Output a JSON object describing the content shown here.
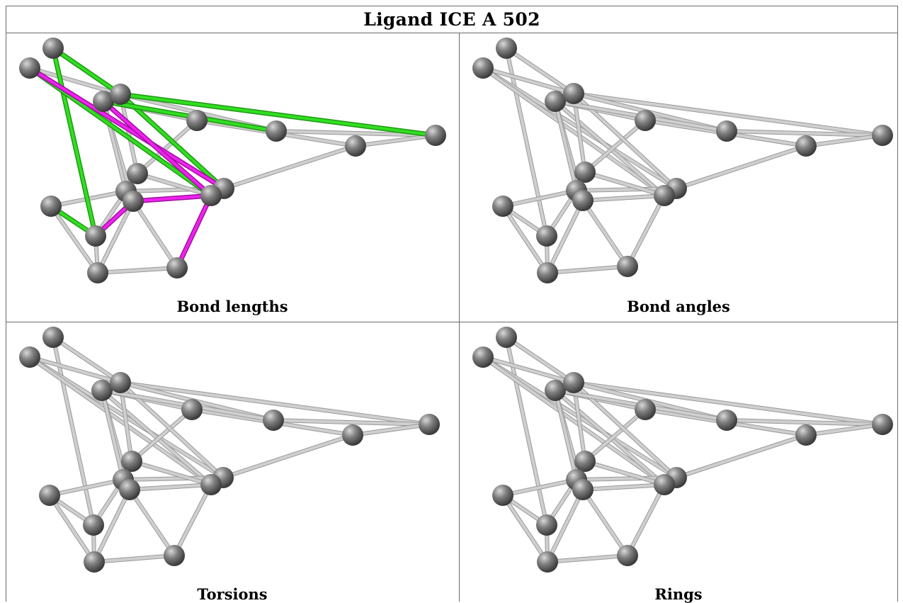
{
  "title": "Ligand ICE A 502",
  "panels": [
    {
      "caption": "Bond lengths",
      "highlighted": true
    },
    {
      "caption": "Bond angles",
      "highlighted": false
    },
    {
      "caption": "Torsions",
      "highlighted": false
    },
    {
      "caption": "Rings",
      "highlighted": false
    }
  ],
  "colors": {
    "bond": "#cfcfcf",
    "atom": "#808080",
    "bond_length_outlier_green": "#33dd22",
    "bond_length_outlier_magenta": "#ee22ee"
  }
}
